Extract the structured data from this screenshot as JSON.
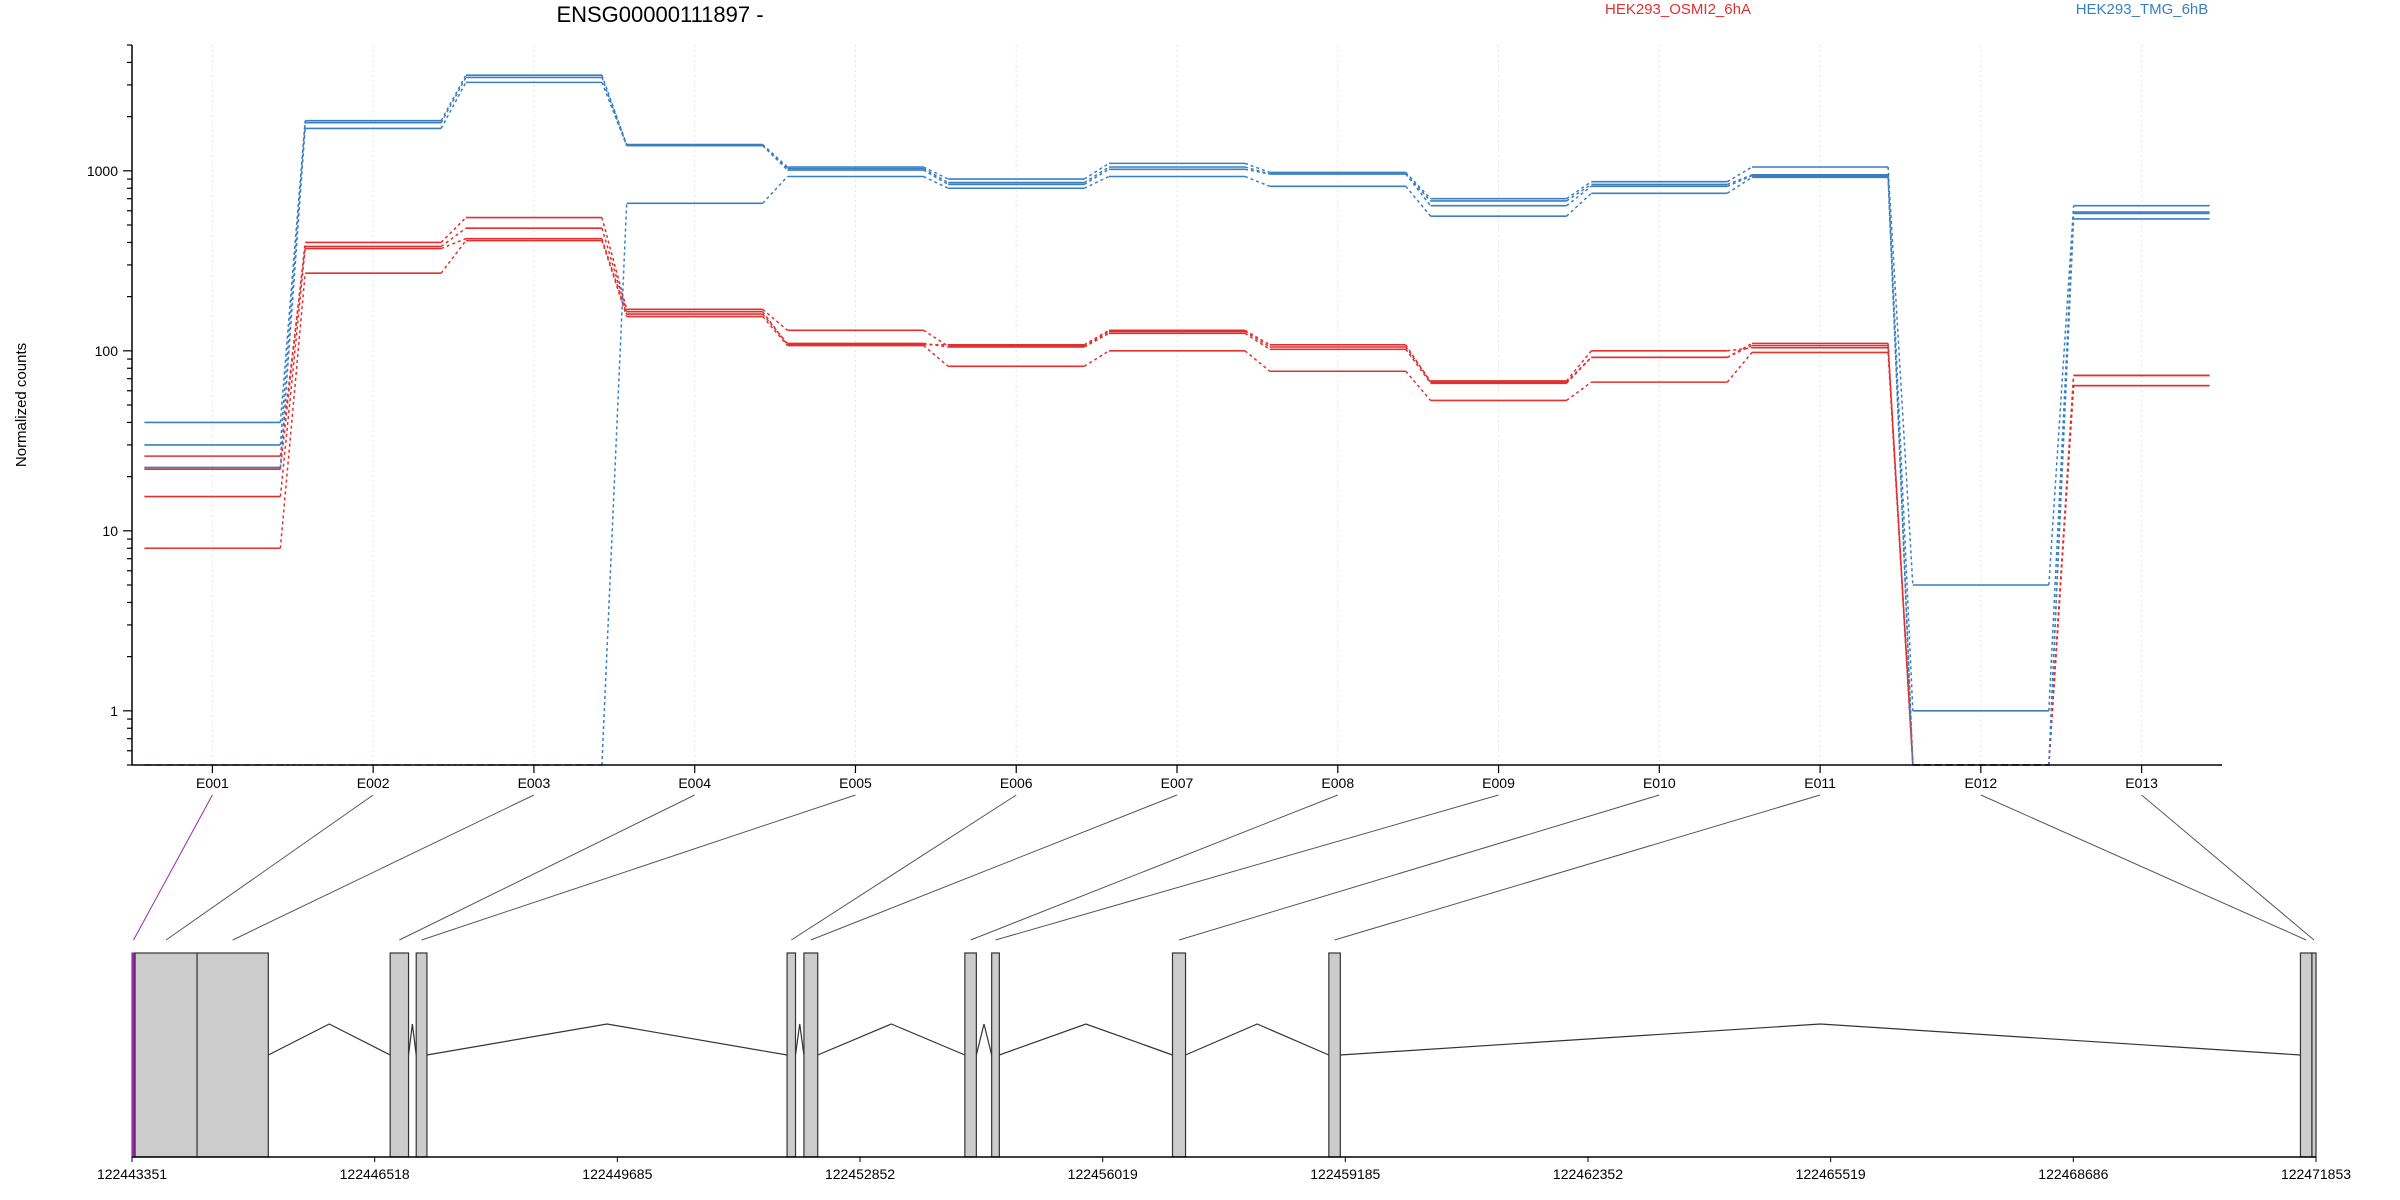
{
  "chart_data": {
    "type": "line",
    "title": "ENSG00000111897 -",
    "ylabel": "Normalized counts",
    "xlabel": "",
    "yscale": "log",
    "ylim": [
      0.5,
      5000
    ],
    "ytick_labels": [
      "1",
      "10",
      "100",
      "1000"
    ],
    "yticks": [
      1,
      10,
      100,
      1000
    ],
    "grid": true,
    "legend_position": "top",
    "categories": [
      "E001",
      "E002",
      "E003",
      "E004",
      "E005",
      "E006",
      "E007",
      "E008",
      "E009",
      "E010",
      "E011",
      "E012",
      "E013"
    ],
    "zero_plot_value": 0.5,
    "series": [
      {
        "group": "red",
        "values": [
          26,
          380,
          480,
          165,
          108,
          108,
          130,
          108,
          67,
          92,
          110,
          0,
          73
        ]
      },
      {
        "group": "red",
        "values": [
          22,
          400,
          550,
          170,
          130,
          106,
          128,
          105,
          68,
          100,
          104,
          0,
          73
        ]
      },
      {
        "group": "red",
        "values": [
          15.5,
          370,
          420,
          160,
          110,
          105,
          125,
          102,
          66,
          92,
          107,
          0,
          64
        ]
      },
      {
        "group": "red",
        "values": [
          8,
          270,
          410,
          155,
          107,
          82,
          100,
          77,
          53,
          67,
          98,
          0,
          64
        ]
      },
      {
        "group": "blue",
        "values": [
          40,
          1900,
          3400,
          1400,
          1050,
          900,
          1100,
          980,
          700,
          870,
          1050,
          5,
          640
        ]
      },
      {
        "group": "blue",
        "values": [
          30,
          1850,
          3300,
          1380,
          1030,
          860,
          1050,
          960,
          680,
          840,
          950,
          1,
          590
        ]
      },
      {
        "group": "blue",
        "values": [
          22.5,
          1720,
          3100,
          1380,
          1010,
          840,
          1020,
          960,
          640,
          820,
          940,
          0,
          580
        ]
      },
      {
        "group": "blue",
        "values": [
          0,
          0,
          0,
          660,
          930,
          800,
          930,
          820,
          560,
          750,
          920,
          0,
          540
        ]
      }
    ],
    "legend": [
      {
        "name": "HEK293_OSMI2_6hA",
        "color": "#e03131"
      },
      {
        "name": "HEK293_TMG_6hB",
        "color": "#3a7fc0"
      }
    ],
    "colors": {
      "red": "#e03131",
      "blue": "#3a7fc0",
      "highlight": "#9c27b0",
      "exon_fill": "#cccccc"
    },
    "gene_model": {
      "coord_range": [
        122443351,
        122471853
      ],
      "coord_labels": [
        "122443351",
        "122446518",
        "122449685",
        "122452852",
        "122456019",
        "122459185",
        "122462352",
        "122465519",
        "122468686",
        "122471853"
      ],
      "exons": [
        {
          "id": "E001",
          "start": 122443351,
          "end": 122443391
        },
        {
          "id": "E002",
          "start": 122443391,
          "end": 122444200
        },
        {
          "id": "E003",
          "start": 122444200,
          "end": 122445130
        },
        {
          "id": "E004",
          "start": 122446720,
          "end": 122446960
        },
        {
          "id": "E005",
          "start": 122447060,
          "end": 122447200
        },
        {
          "id": "E006",
          "start": 122451900,
          "end": 122452010
        },
        {
          "id": "E007",
          "start": 122452120,
          "end": 122452300
        },
        {
          "id": "E008",
          "start": 122454220,
          "end": 122454370
        },
        {
          "id": "E009",
          "start": 122454570,
          "end": 122454670
        },
        {
          "id": "E010",
          "start": 122456930,
          "end": 122457100
        },
        {
          "id": "E011",
          "start": 122458970,
          "end": 122459120
        },
        {
          "id": "E012",
          "start": 122471650,
          "end": 122471800
        },
        {
          "id": "E013",
          "start": 122471800,
          "end": 122471853
        }
      ]
    }
  }
}
